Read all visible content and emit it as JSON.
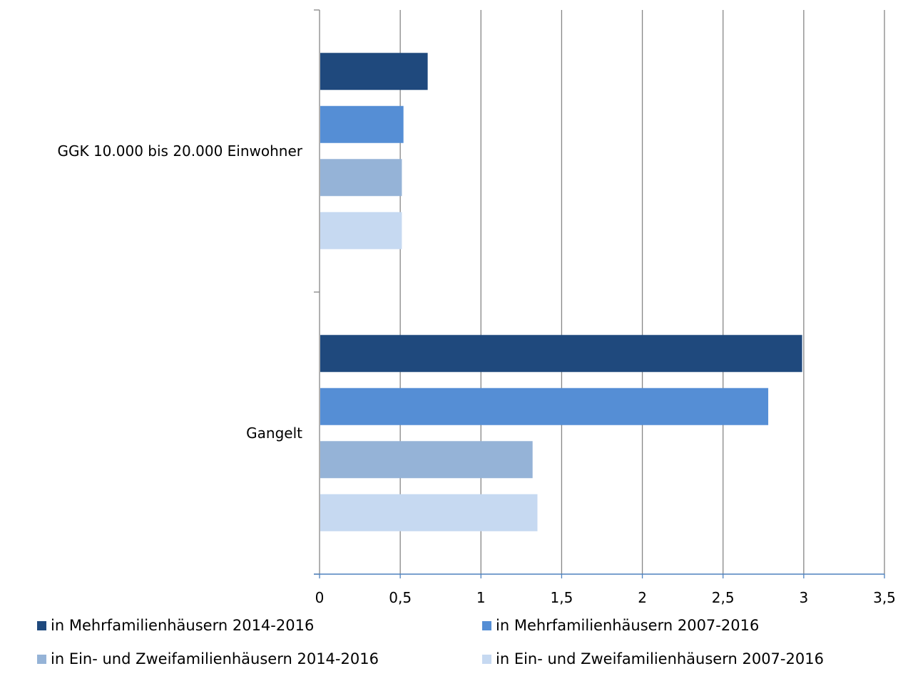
{
  "chart_data": {
    "type": "bar",
    "orientation": "horizontal",
    "categories": [
      "GGK 10.000 bis 20.000 Einwohner",
      "Gangelt"
    ],
    "series": [
      {
        "name": "in Mehrfamilienhäusern 2014-2016",
        "color": "#1F497D",
        "values": [
          0.67,
          2.99
        ]
      },
      {
        "name": "in Mehrfamilienhäusern 2007-2016",
        "color": "#558ED5",
        "values": [
          0.52,
          2.78
        ]
      },
      {
        "name": "in Ein- und Zweifamilienhäusern 2014-2016",
        "color": "#95B3D7",
        "values": [
          0.51,
          1.32
        ]
      },
      {
        "name": "in Ein- und Zweifamilienhäusern 2007-2016",
        "color": "#C6D9F1",
        "values": [
          0.51,
          1.35
        ]
      }
    ],
    "xlim": [
      0,
      3.5
    ],
    "xticks": [
      "0",
      "0,5",
      "1",
      "1,5",
      "2",
      "2,5",
      "3",
      "3,5"
    ],
    "grid": true,
    "legend_position": "bottom",
    "title": "",
    "xlabel": "",
    "ylabel": ""
  }
}
